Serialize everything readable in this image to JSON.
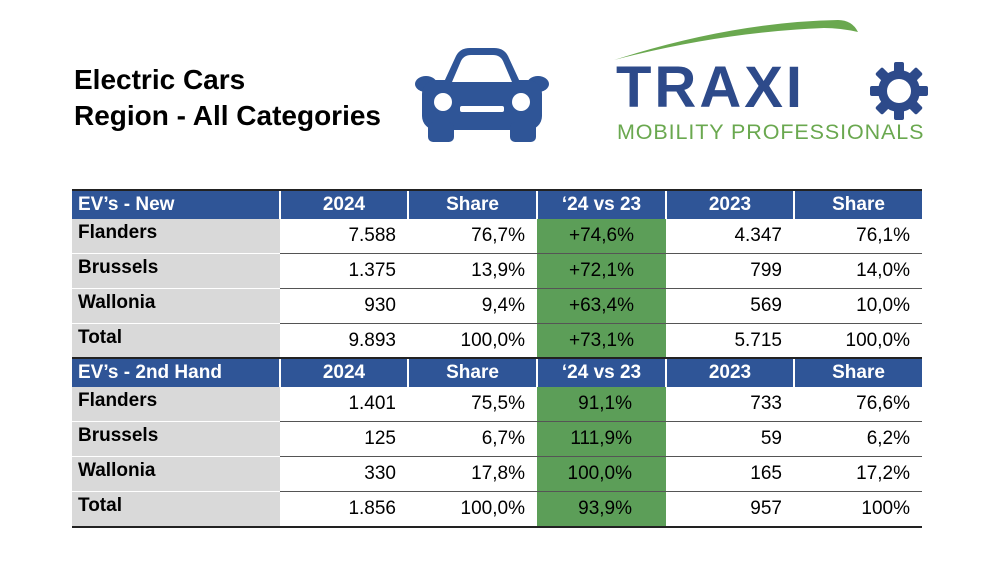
{
  "title": {
    "line1": "Electric Cars",
    "line2": "Region - All Categories"
  },
  "logo": {
    "word": "TRAXI",
    "subtitle": "MOBILITY PROFESSIONALS",
    "color_primary": "#2d4a8a",
    "color_secondary": "#6aa84f"
  },
  "icons": {
    "car": "car-icon"
  },
  "colors": {
    "header_bg": "#2f5597",
    "highlight": "#5c9e58",
    "region_bg": "#d9d9d9"
  },
  "tables": [
    {
      "headers": [
        "EV’s - New",
        "2024",
        "Share",
        "‘24 vs 23",
        "2023",
        "Share"
      ],
      "rows": [
        [
          "Flanders",
          "7.588",
          "76,7%",
          "+74,6%",
          "4.347",
          "76,1%"
        ],
        [
          "Brussels",
          "1.375",
          "13,9%",
          "+72,1%",
          "799",
          "14,0%"
        ],
        [
          "Wallonia",
          "930",
          "9,4%",
          "+63,4%",
          "569",
          "10,0%"
        ],
        [
          "Total",
          "9.893",
          "100,0%",
          "+73,1%",
          "5.715",
          "100,0%"
        ]
      ]
    },
    {
      "headers": [
        "EV’s - 2nd Hand",
        "2024",
        "Share",
        "‘24 vs 23",
        "2023",
        "Share"
      ],
      "rows": [
        [
          "Flanders",
          "1.401",
          "75,5%",
          "91,1%",
          "733",
          "76,6%"
        ],
        [
          "Brussels",
          "125",
          "6,7%",
          "111,9%",
          "59",
          "6,2%"
        ],
        [
          "Wallonia",
          "330",
          "17,8%",
          "100,0%",
          "165",
          "17,2%"
        ],
        [
          "Total",
          "1.856",
          "100,0%",
          "93,9%",
          "957",
          "100%"
        ]
      ]
    }
  ]
}
